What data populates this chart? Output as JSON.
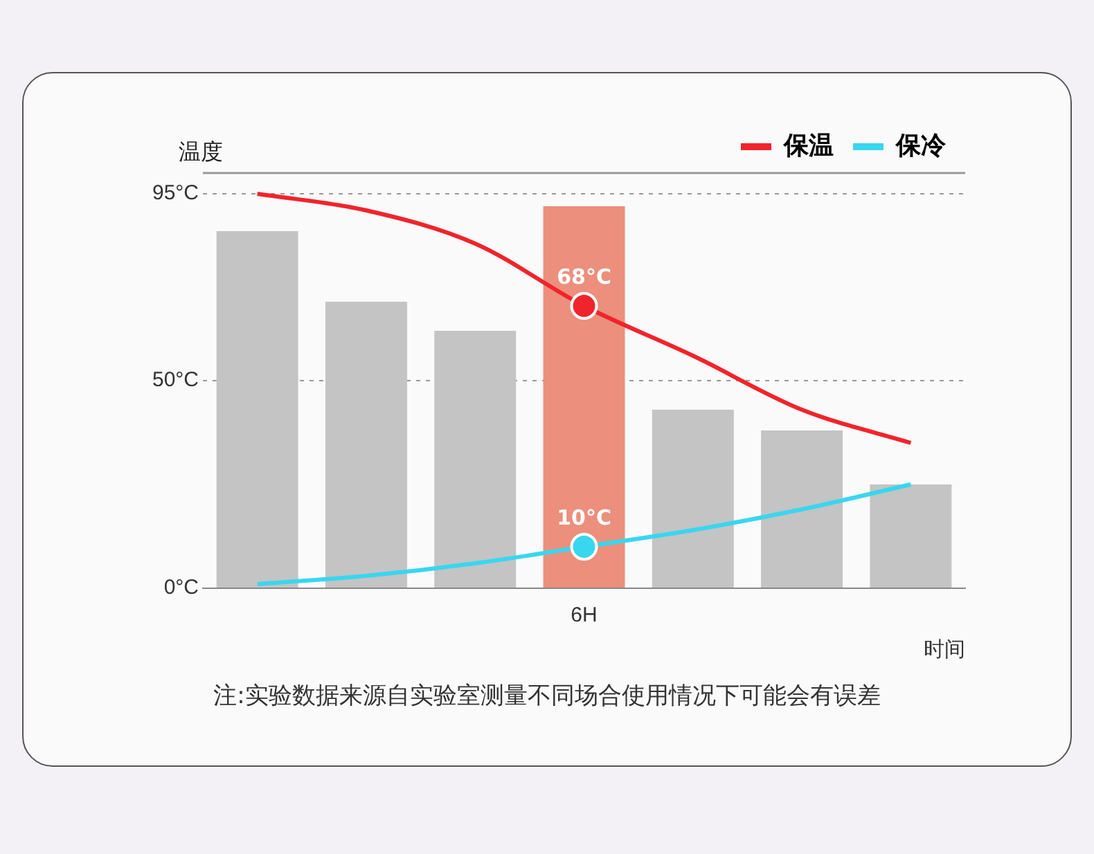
{
  "chart_data": {
    "type": "line",
    "ylabel": "温度",
    "xlabel": "时间",
    "categories": [
      null,
      null,
      null,
      "6H",
      null,
      null,
      null
    ],
    "ylim": [
      0,
      100
    ],
    "yticks": [
      {
        "value": 0,
        "label": "0°C"
      },
      {
        "value": 50,
        "label": "50°C"
      },
      {
        "value": 95,
        "label": "95°C"
      }
    ],
    "grid": "y",
    "legend": "top right",
    "series": [
      {
        "type": "bar",
        "colors": [
          "#c4c4c4",
          "#c4c4c4",
          "#c4c4c4",
          "#ec8f7d",
          "#c4c4c4",
          "#c4c4c4",
          "#c4c4c4"
        ],
        "values": [
          86,
          69,
          62,
          92,
          43,
          38,
          25
        ]
      },
      {
        "name": "保温",
        "color": "#f0242b",
        "values": [
          95,
          91,
          83,
          68,
          56,
          43,
          35
        ],
        "value_labels": [
          null,
          null,
          null,
          "68°C",
          null,
          null,
          null
        ]
      },
      {
        "name": "保冷",
        "color": "#39d6f0",
        "values": [
          1,
          3,
          6,
          10,
          14,
          19,
          25
        ],
        "value_labels": [
          null,
          null,
          null,
          "10°C",
          null,
          null,
          null
        ]
      }
    ],
    "annotations": [
      "注:实验数据来源自实验室测量不同场合使用情况下可能会有误差"
    ]
  }
}
